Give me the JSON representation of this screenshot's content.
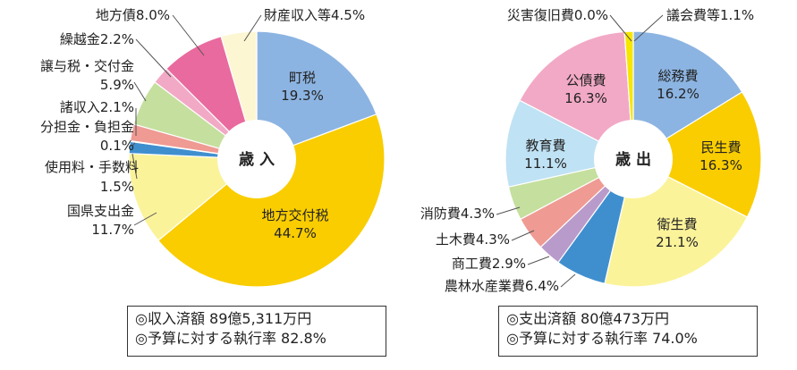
{
  "chart_data": [
    {
      "type": "pie",
      "center_label": "歳 入",
      "summary": [
        "◎収入済額 89億5,311万円",
        "◎予算に対する執行率 82.8%"
      ],
      "slices": [
        {
          "name": "町税",
          "value": 19.3,
          "label": "町税",
          "pct": "19.3%",
          "color": "#8cb4e2"
        },
        {
          "name": "地方交付税",
          "value": 44.7,
          "label": "地方交付税",
          "pct": "44.7%",
          "color": "#f9cd00"
        },
        {
          "name": "国県支出金",
          "value": 11.7,
          "label": "国県支出金",
          "pct": "11.7%",
          "color": "#fbf39a"
        },
        {
          "name": "使用料・手数料",
          "value": 1.5,
          "label": "使用料・手数料",
          "pct": "1.5%",
          "color": "#3f8fcf"
        },
        {
          "name": "分担金・負担金",
          "value": 0.1,
          "label": "分担金・負担金",
          "pct": "0.1%",
          "color": "#c8c8c8"
        },
        {
          "name": "諸収入",
          "value": 2.1,
          "label": "諸収入",
          "pct": "2.1%",
          "color": "#ef9a93"
        },
        {
          "name": "譲与税・交付金",
          "value": 5.9,
          "label": "譲与税・交付金",
          "pct": "5.9%",
          "color": "#c5df9e"
        },
        {
          "name": "繰越金",
          "value": 2.2,
          "label": "繰越金",
          "pct": "2.2%",
          "color": "#f2a9c5"
        },
        {
          "name": "地方債",
          "value": 8.0,
          "label": "地方債",
          "pct": "8.0%",
          "color": "#e96a9e"
        },
        {
          "name": "財産収入等",
          "value": 4.5,
          "label": "財産収入等",
          "pct": "4.5%",
          "color": "#fdf6d3"
        }
      ]
    },
    {
      "type": "pie",
      "center_label": "歳 出",
      "summary": [
        "◎支出済額 80億473万円",
        "◎予算に対する執行率 74.0%"
      ],
      "slices": [
        {
          "name": "総務費",
          "value": 16.2,
          "label": "総務費",
          "pct": "16.2%",
          "color": "#8cb4e2"
        },
        {
          "name": "民生費",
          "value": 16.3,
          "label": "民生費",
          "pct": "16.3%",
          "color": "#f9cd00"
        },
        {
          "name": "衛生費",
          "value": 21.1,
          "label": "衛生費",
          "pct": "21.1%",
          "color": "#fbf39a"
        },
        {
          "name": "農林水産業費",
          "value": 6.4,
          "label": "農林水産業費",
          "pct": "6.4%",
          "color": "#3f8fcf"
        },
        {
          "name": "商工費",
          "value": 2.9,
          "label": "商工費",
          "pct": "2.9%",
          "color": "#b99bcb"
        },
        {
          "name": "土木費",
          "value": 4.3,
          "label": "土木費",
          "pct": "4.3%",
          "color": "#ef9a93"
        },
        {
          "name": "消防費",
          "value": 4.3,
          "label": "消防費",
          "pct": "4.3%",
          "color": "#c5df9e"
        },
        {
          "name": "教育費",
          "value": 11.1,
          "label": "教育費",
          "pct": "11.1%",
          "color": "#bfe2f4"
        },
        {
          "name": "公債費",
          "value": 16.3,
          "label": "公債費",
          "pct": "16.3%",
          "color": "#f2a9c5"
        },
        {
          "name": "災害復旧費",
          "value": 0.0,
          "label": "災害復旧費",
          "pct": "0.0%",
          "color": "#c8c8c8"
        },
        {
          "name": "議会費等",
          "value": 1.1,
          "label": "議会費等",
          "pct": "1.1%",
          "color": "#f7e600"
        }
      ]
    }
  ]
}
